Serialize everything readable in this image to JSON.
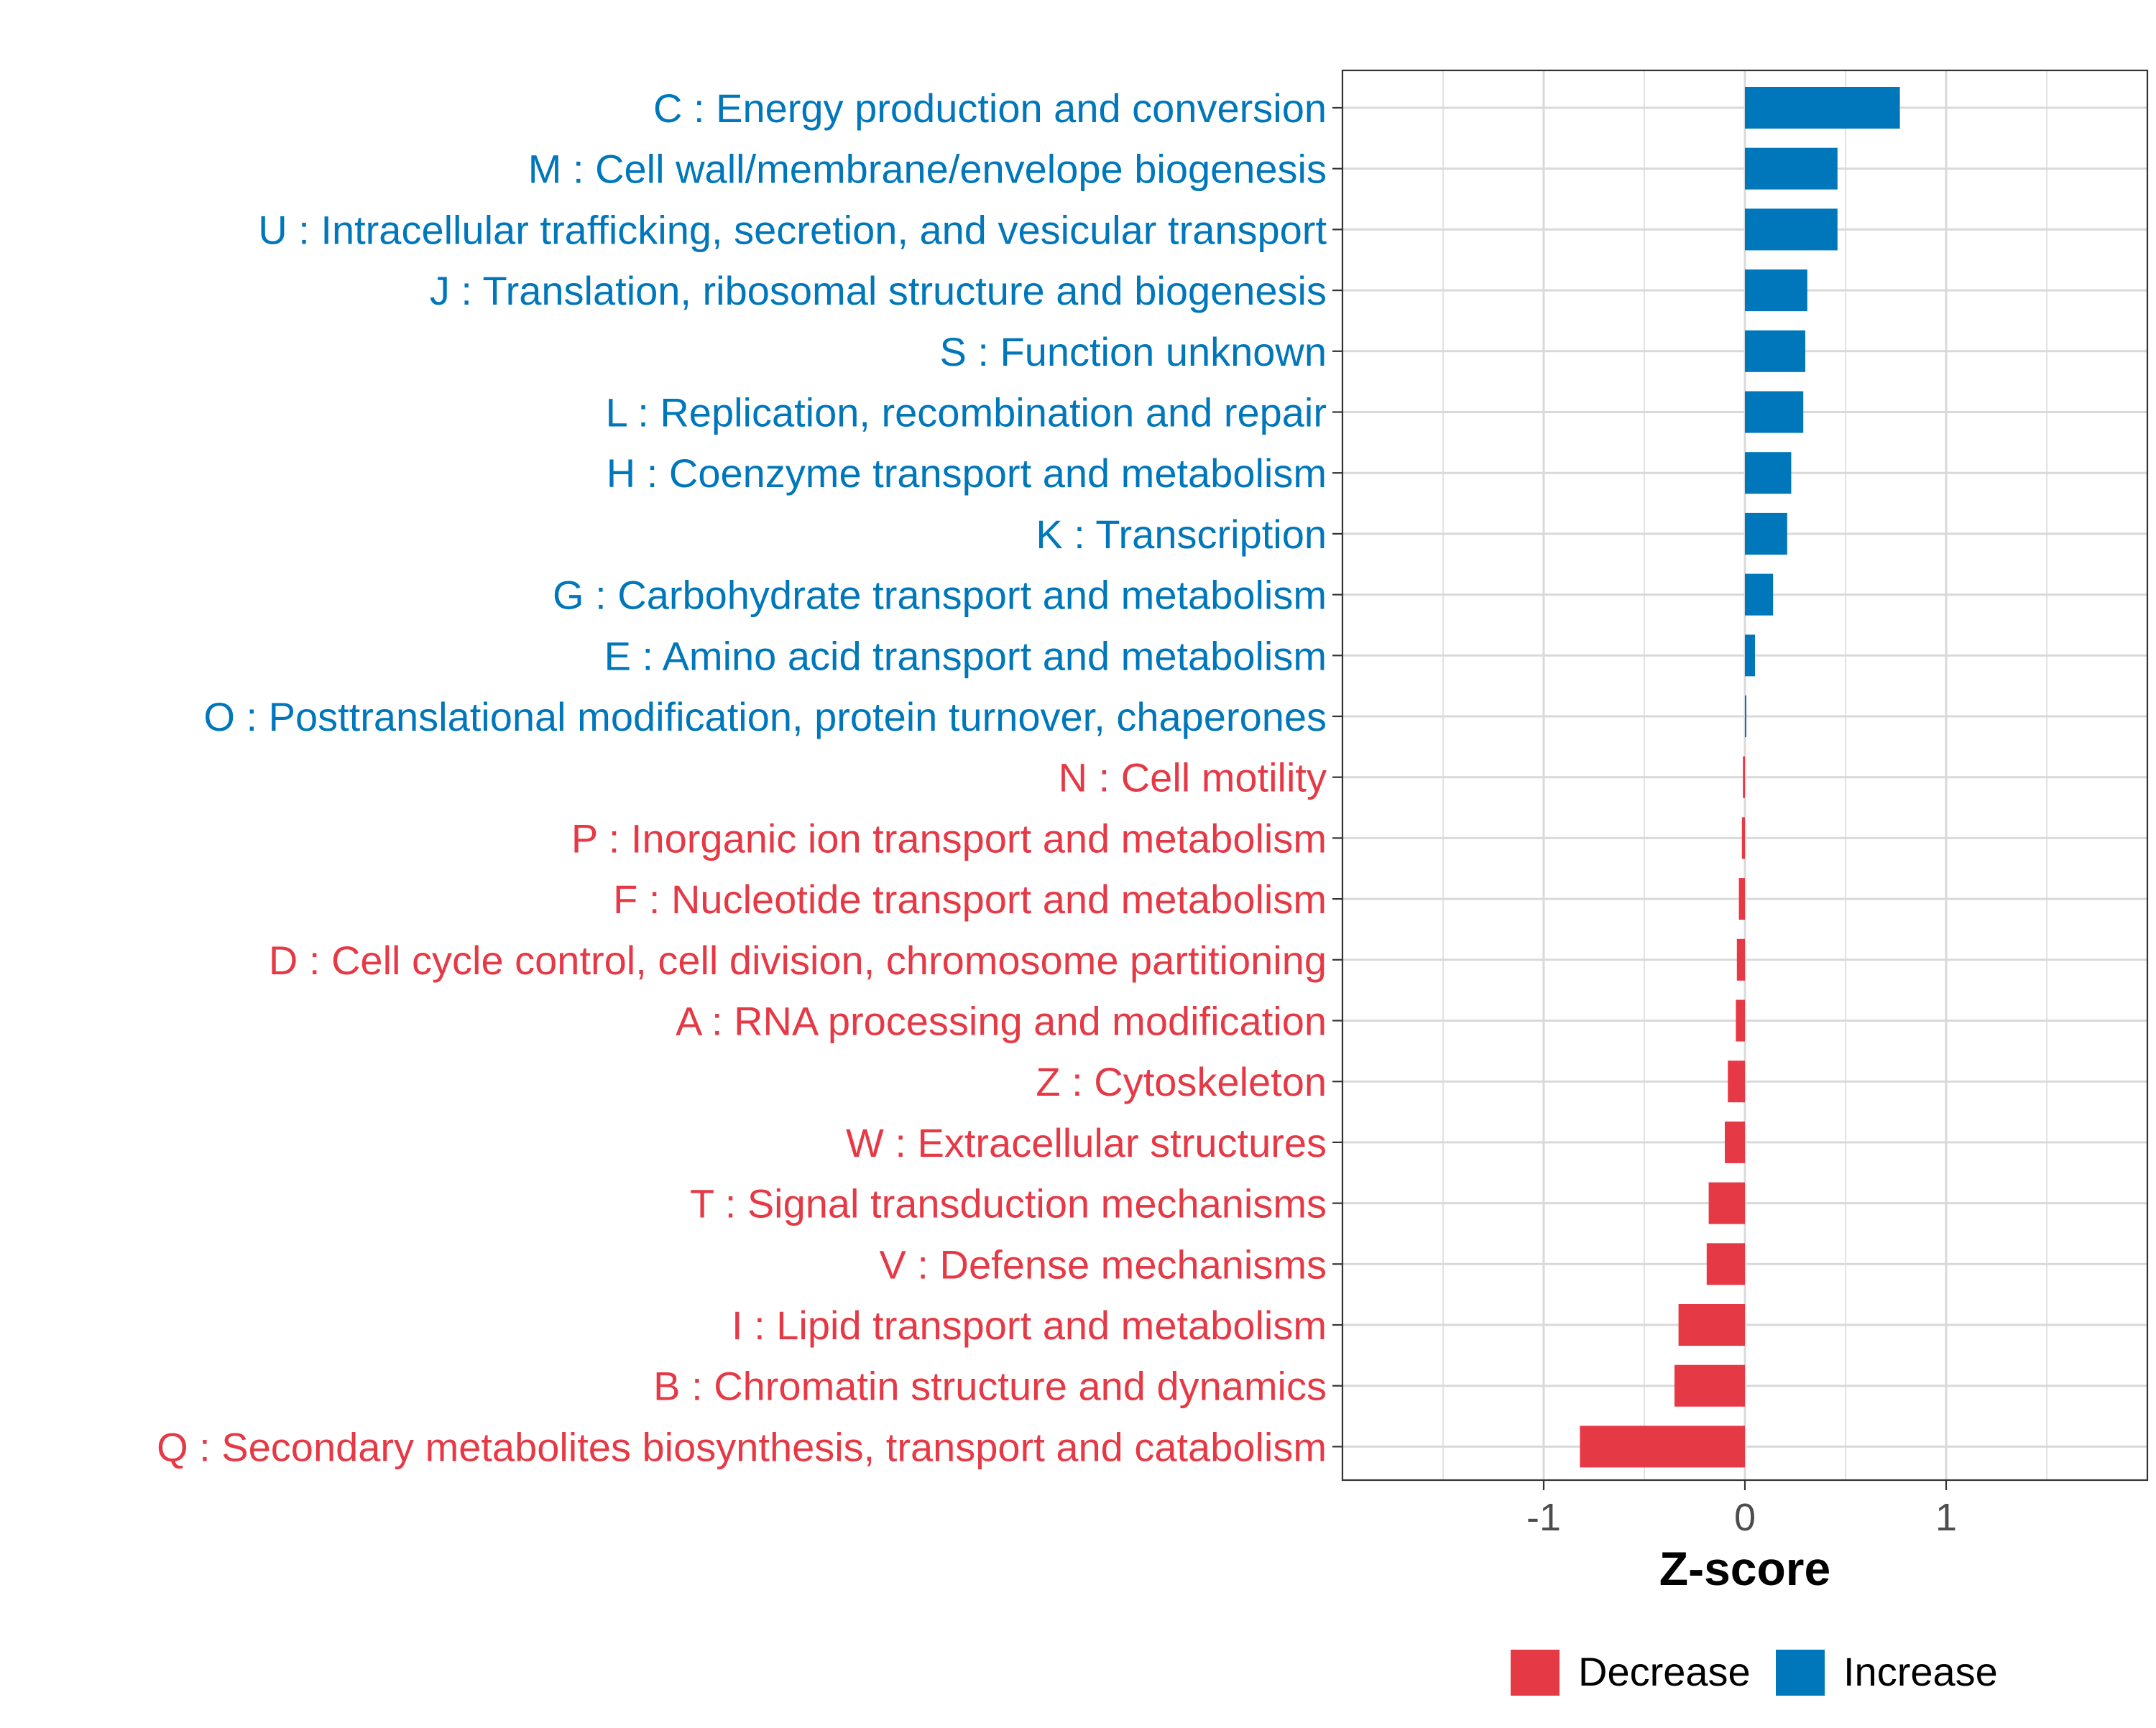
{
  "chart_data": {
    "type": "bar",
    "orientation": "horizontal",
    "title": "",
    "xlabel": "Z-score",
    "ylabel": "",
    "xlim": [
      -2,
      2
    ],
    "x_ticks": [
      -1,
      0,
      1
    ],
    "x_tick_labels": [
      "-1",
      "0",
      "1"
    ],
    "grid": true,
    "legend_position": "bottom",
    "colors": {
      "Decrease": "#E63946",
      "Increase": "#0077BB"
    },
    "legend": [
      {
        "label": "Decrease",
        "color": "#E63946"
      },
      {
        "label": "Increase",
        "color": "#0077BB"
      }
    ],
    "categories": [
      {
        "label": "C : Energy production and conversion",
        "value": 0.77,
        "group": "Increase"
      },
      {
        "label": "M : Cell wall/membrane/envelope biogenesis",
        "value": 0.46,
        "group": "Increase"
      },
      {
        "label": "U : Intracellular trafficking, secretion, and vesicular transport",
        "value": 0.46,
        "group": "Increase"
      },
      {
        "label": "J : Translation, ribosomal structure and biogenesis",
        "value": 0.31,
        "group": "Increase"
      },
      {
        "label": "S : Function unknown",
        "value": 0.3,
        "group": "Increase"
      },
      {
        "label": "L : Replication, recombination and repair",
        "value": 0.29,
        "group": "Increase"
      },
      {
        "label": "H : Coenzyme transport and metabolism",
        "value": 0.23,
        "group": "Increase"
      },
      {
        "label": "K : Transcription",
        "value": 0.21,
        "group": "Increase"
      },
      {
        "label": "G : Carbohydrate transport and metabolism",
        "value": 0.14,
        "group": "Increase"
      },
      {
        "label": "E : Amino acid transport and metabolism",
        "value": 0.05,
        "group": "Increase"
      },
      {
        "label": "O : Posttranslational modification, protein turnover, chaperones",
        "value": 0.005,
        "group": "Increase"
      },
      {
        "label": "N : Cell motility",
        "value": -0.01,
        "group": "Decrease"
      },
      {
        "label": "P : Inorganic ion transport and metabolism",
        "value": -0.015,
        "group": "Decrease"
      },
      {
        "label": "F : Nucleotide transport and metabolism",
        "value": -0.03,
        "group": "Decrease"
      },
      {
        "label": "D : Cell cycle control, cell division, chromosome partitioning",
        "value": -0.04,
        "group": "Decrease"
      },
      {
        "label": "A : RNA processing and modification",
        "value": -0.045,
        "group": "Decrease"
      },
      {
        "label": "Z : Cytoskeleton",
        "value": -0.085,
        "group": "Decrease"
      },
      {
        "label": "W : Extracellular structures",
        "value": -0.1,
        "group": "Decrease"
      },
      {
        "label": "T : Signal transduction mechanisms",
        "value": -0.18,
        "group": "Decrease"
      },
      {
        "label": "V : Defense mechanisms",
        "value": -0.19,
        "group": "Decrease"
      },
      {
        "label": "I : Lipid transport and metabolism",
        "value": -0.33,
        "group": "Decrease"
      },
      {
        "label": "B : Chromatin structure and dynamics",
        "value": -0.35,
        "group": "Decrease"
      },
      {
        "label": "Q : Secondary metabolites biosynthesis, transport and catabolism",
        "value": -0.82,
        "group": "Decrease"
      }
    ]
  }
}
